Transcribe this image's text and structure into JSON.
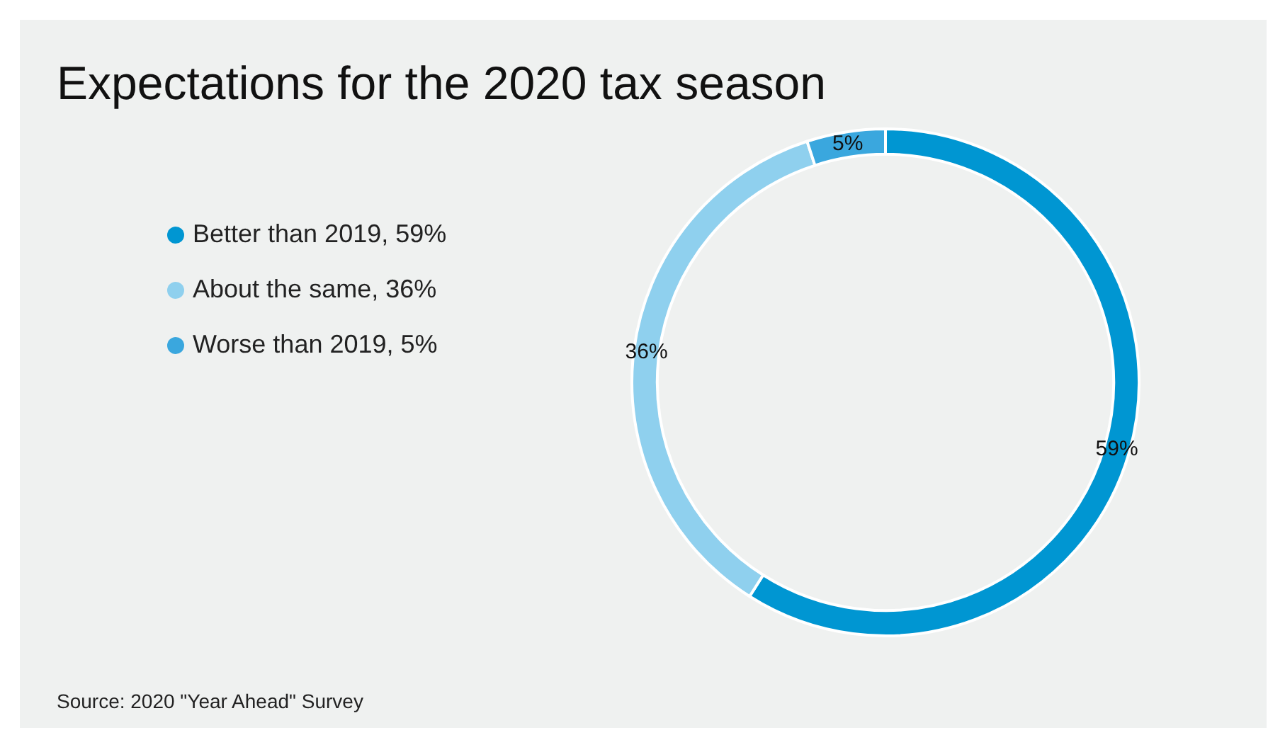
{
  "chart_data": {
    "type": "donut",
    "title": "Expectations for the 2020 tax season",
    "categories": [
      "Better than 2019, 59%",
      "About the same, 36%",
      "Worse than 2019, 5%"
    ],
    "values": [
      59,
      36,
      5
    ],
    "colors": [
      "#0096d2",
      "#8fd0ee",
      "#3aa7de"
    ],
    "value_labels": [
      "59%",
      "36%",
      "5%"
    ],
    "legend": "left",
    "annotations": [
      "Source: 2020 \"Year Ahead\" Survey"
    ]
  }
}
